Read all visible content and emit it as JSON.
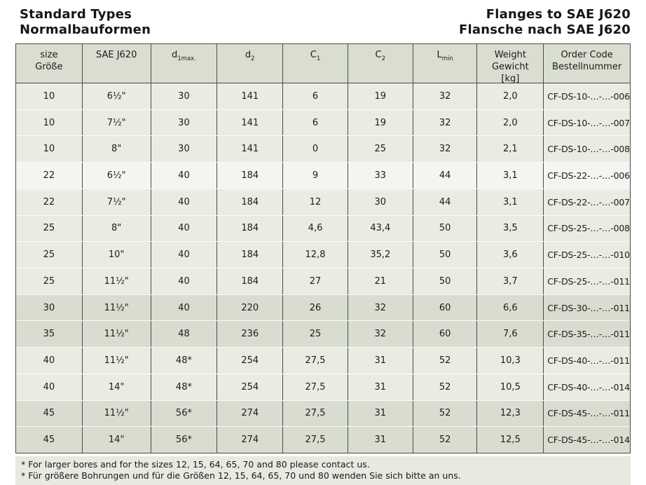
{
  "page": {
    "title_left_line1": "Standard Types",
    "title_left_line2": "Normalbauformen",
    "title_right_line1": "Flanges to SAE J620",
    "title_right_line2": "Flansche nach SAE J620"
  },
  "colors": {
    "header_bg": "#d9ded0",
    "row_light": "#e9ece3",
    "row_lighter": "#f3f5f0",
    "row_dark": "#d8ddcf",
    "notes_bg": "#e7eae1",
    "border": "#4a4a4a"
  },
  "table": {
    "header": {
      "size_line1": "size",
      "size_line2": "Größe",
      "sae": "SAE J620",
      "d1_base": "d",
      "d1_sub": "1max.",
      "d2_base": "d",
      "d2_sub": "2",
      "c1_base": "C",
      "c1_sub": "1",
      "c2_base": "C",
      "c2_sub": "2",
      "lmin_base": "L",
      "lmin_sub": "min",
      "weight_line1": "Weight",
      "weight_line2": "Gewicht",
      "weight_line3": "[kg]",
      "order_line1": "Order Code",
      "order_line2": "Bestellnummer"
    },
    "rows": [
      {
        "size": "10",
        "sae": "6½\"",
        "d1": "30",
        "d2": "141",
        "c1": "6",
        "c2": "19",
        "lmin": "32",
        "weight": "2,0",
        "order": "CF-DS-10-…-…-006",
        "shade": "light"
      },
      {
        "size": "10",
        "sae": "7½\"",
        "d1": "30",
        "d2": "141",
        "c1": "6",
        "c2": "19",
        "lmin": "32",
        "weight": "2,0",
        "order": "CF-DS-10-…-…-007",
        "shade": "light"
      },
      {
        "size": "10",
        "sae": "8\"",
        "d1": "30",
        "d2": "141",
        "c1": "0",
        "c2": "25",
        "lmin": "32",
        "weight": "2,1",
        "order": "CF-DS-10-…-…-008",
        "shade": "light"
      },
      {
        "size": "22",
        "sae": "6½\"",
        "d1": "40",
        "d2": "184",
        "c1": "9",
        "c2": "33",
        "lmin": "44",
        "weight": "3,1",
        "order": "CF-DS-22-…-…-006",
        "shade": "lighter"
      },
      {
        "size": "22",
        "sae": "7½\"",
        "d1": "40",
        "d2": "184",
        "c1": "12",
        "c2": "30",
        "lmin": "44",
        "weight": "3,1",
        "order": "CF-DS-22-…-…-007",
        "shade": "light"
      },
      {
        "size": "25",
        "sae": "8\"",
        "d1": "40",
        "d2": "184",
        "c1": "4,6",
        "c2": "43,4",
        "lmin": "50",
        "weight": "3,5",
        "order": "CF-DS-25-…-…-008",
        "shade": "light"
      },
      {
        "size": "25",
        "sae": "10\"",
        "d1": "40",
        "d2": "184",
        "c1": "12,8",
        "c2": "35,2",
        "lmin": "50",
        "weight": "3,6",
        "order": "CF-DS-25-…-…-010",
        "shade": "light"
      },
      {
        "size": "25",
        "sae": "11½\"",
        "d1": "40",
        "d2": "184",
        "c1": "27",
        "c2": "21",
        "lmin": "50",
        "weight": "3,7",
        "order": "CF-DS-25-…-…-011",
        "shade": "light"
      },
      {
        "size": "30",
        "sae": "11½\"",
        "d1": "40",
        "d2": "220",
        "c1": "26",
        "c2": "32",
        "lmin": "60",
        "weight": "6,6",
        "order": "CF-DS-30-…-…-011",
        "shade": "dark"
      },
      {
        "size": "35",
        "sae": "11½\"",
        "d1": "48",
        "d2": "236",
        "c1": "25",
        "c2": "32",
        "lmin": "60",
        "weight": "7,6",
        "order": "CF-DS-35-…-…-011",
        "shade": "dark"
      },
      {
        "size": "40",
        "sae": "11½\"",
        "d1": "48*",
        "d2": "254",
        "c1": "27,5",
        "c2": "31",
        "lmin": "52",
        "weight": "10,3",
        "order": "CF-DS-40-…-…-011",
        "shade": "light"
      },
      {
        "size": "40",
        "sae": "14\"",
        "d1": "48*",
        "d2": "254",
        "c1": "27,5",
        "c2": "31",
        "lmin": "52",
        "weight": "10,5",
        "order": "CF-DS-40-…-…-014",
        "shade": "light"
      },
      {
        "size": "45",
        "sae": "11½\"",
        "d1": "56*",
        "d2": "274",
        "c1": "27,5",
        "c2": "31",
        "lmin": "52",
        "weight": "12,3",
        "order": "CF-DS-45-…-…-011",
        "shade": "dark"
      },
      {
        "size": "45",
        "sae": "14\"",
        "d1": "56*",
        "d2": "274",
        "c1": "27,5",
        "c2": "31",
        "lmin": "52",
        "weight": "12,5",
        "order": "CF-DS-45-…-…-014",
        "shade": "dark"
      }
    ]
  },
  "notes": {
    "line1": "* For larger bores and for the sizes 12, 15, 64, 65, 70 and 80 please contact us.",
    "line2": "* Für größere Bohrungen und für die Größen 12, 15, 64, 65, 70 und 80 wenden Sie sich bitte an uns."
  }
}
